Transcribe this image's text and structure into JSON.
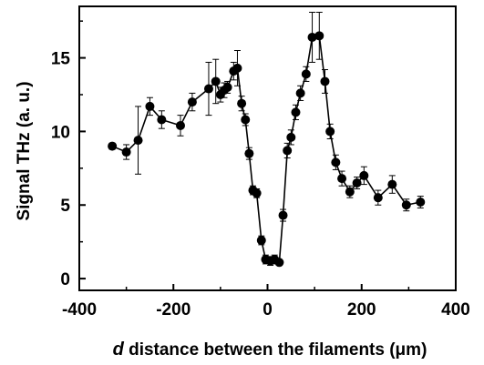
{
  "chart_data": {
    "type": "scatter",
    "title": "",
    "xlabel_italic": "d",
    "xlabel_rest": " distance between the filaments (μm)",
    "ylabel": "Signal THz (a. u.)",
    "xlim": [
      -400,
      400
    ],
    "ylim": [
      -0.8,
      18.5
    ],
    "x_ticks": [
      -400,
      -200,
      0,
      200,
      400
    ],
    "x_tick_labels": [
      "-400",
      "-200",
      "0",
      "200",
      "400"
    ],
    "y_ticks": [
      0,
      5,
      10,
      15
    ],
    "y_tick_labels": [
      "0",
      "5",
      "10",
      "15"
    ],
    "grid": false,
    "connected": true,
    "marker": "filled-circle",
    "series": [
      {
        "points": [
          {
            "x": -330,
            "y": 9.0,
            "err": 0.2
          },
          {
            "x": -300,
            "y": 8.6,
            "err": 0.5
          },
          {
            "x": -275,
            "y": 9.4,
            "err": 2.3
          },
          {
            "x": -250,
            "y": 11.7,
            "err": 0.6
          },
          {
            "x": -225,
            "y": 10.8,
            "err": 0.6
          },
          {
            "x": -185,
            "y": 10.4,
            "err": 0.7
          },
          {
            "x": -160,
            "y": 12.0,
            "err": 0.6
          },
          {
            "x": -125,
            "y": 12.9,
            "err": 1.8
          },
          {
            "x": -110,
            "y": 13.4,
            "err": 1.5
          },
          {
            "x": -100,
            "y": 12.5,
            "err": 0.5
          },
          {
            "x": -92,
            "y": 12.8,
            "err": 0.5
          },
          {
            "x": -85,
            "y": 13.0,
            "err": 0.4
          },
          {
            "x": -72,
            "y": 14.1,
            "err": 0.6
          },
          {
            "x": -64,
            "y": 14.3,
            "err": 1.2
          },
          {
            "x": -55,
            "y": 11.9,
            "err": 0.5
          },
          {
            "x": -47,
            "y": 10.8,
            "err": 0.4
          },
          {
            "x": -39,
            "y": 8.5,
            "err": 0.4
          },
          {
            "x": -31,
            "y": 6.0,
            "err": 0.3
          },
          {
            "x": -23,
            "y": 5.8,
            "err": 0.3
          },
          {
            "x": -13,
            "y": 2.6,
            "err": 0.3
          },
          {
            "x": -4,
            "y": 1.3,
            "err": 0.3
          },
          {
            "x": 6,
            "y": 1.2,
            "err": 0.3
          },
          {
            "x": 15,
            "y": 1.3,
            "err": 0.3
          },
          {
            "x": 25,
            "y": 1.1,
            "err": 0.2
          },
          {
            "x": 33,
            "y": 4.3,
            "err": 0.4
          },
          {
            "x": 42,
            "y": 8.7,
            "err": 0.5
          },
          {
            "x": 50,
            "y": 9.6,
            "err": 0.5
          },
          {
            "x": 60,
            "y": 11.3,
            "err": 0.5
          },
          {
            "x": 70,
            "y": 12.6,
            "err": 0.5
          },
          {
            "x": 82,
            "y": 13.9,
            "err": 0.5
          },
          {
            "x": 95,
            "y": 16.4,
            "err": 1.7
          },
          {
            "x": 110,
            "y": 16.5,
            "err": 1.6
          },
          {
            "x": 122,
            "y": 13.4,
            "err": 0.8
          },
          {
            "x": 133,
            "y": 10.0,
            "err": 0.5
          },
          {
            "x": 145,
            "y": 7.9,
            "err": 0.5
          },
          {
            "x": 158,
            "y": 6.8,
            "err": 0.5
          },
          {
            "x": 175,
            "y": 5.9,
            "err": 0.4
          },
          {
            "x": 190,
            "y": 6.5,
            "err": 0.4
          },
          {
            "x": 205,
            "y": 7.0,
            "err": 0.6
          },
          {
            "x": 235,
            "y": 5.5,
            "err": 0.5
          },
          {
            "x": 265,
            "y": 6.4,
            "err": 0.6
          },
          {
            "x": 295,
            "y": 5.0,
            "err": 0.4
          },
          {
            "x": 325,
            "y": 5.2,
            "err": 0.4
          }
        ]
      }
    ]
  }
}
